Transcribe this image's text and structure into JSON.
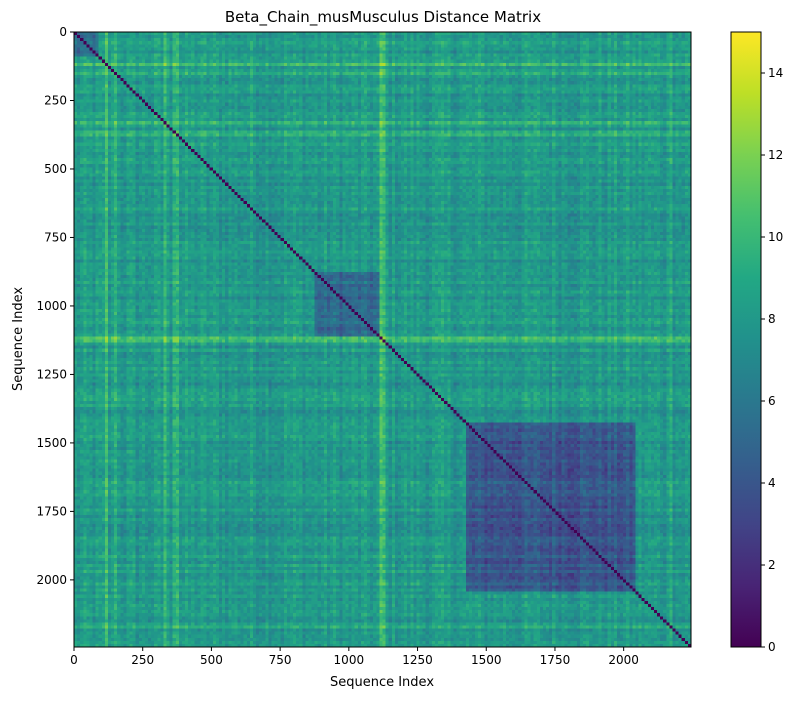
{
  "chart_data": {
    "type": "heatmap",
    "title": "Beta_Chain_musMusculus Distance Matrix",
    "xlabel": "Sequence Index",
    "ylabel": "Sequence Index",
    "n": 2245,
    "x_ticks": [
      0,
      250,
      500,
      750,
      1000,
      1250,
      1500,
      1750,
      2000
    ],
    "y_ticks": [
      0,
      250,
      500,
      750,
      1000,
      1250,
      1500,
      1750,
      2000
    ],
    "xlim": [
      0,
      2245
    ],
    "ylim": [
      2245,
      0
    ],
    "colorbar": {
      "min": 0,
      "max": 15,
      "ticks": [
        0,
        2,
        4,
        6,
        8,
        10,
        12,
        14
      ],
      "colormap": "viridis"
    },
    "typical_value": 8,
    "diagonal_value": 0,
    "low_distance_blocks": [
      {
        "rows": [
          1420,
          2040
        ],
        "cols": [
          1420,
          2040
        ],
        "value": 2.5
      },
      {
        "rows": [
          870,
          1110
        ],
        "cols": [
          870,
          1110
        ],
        "value": 3.5
      },
      {
        "rows": [
          0,
          80
        ],
        "cols": [
          0,
          80
        ],
        "value": 3.5
      }
    ],
    "high_distance_lines_approx": [
      120,
      150,
      330,
      370,
      380,
      1120,
      1130,
      2170
    ],
    "colors": {
      "viridis_0": "#440154",
      "viridis_50": "#21918c",
      "viridis_100": "#fde725"
    }
  }
}
